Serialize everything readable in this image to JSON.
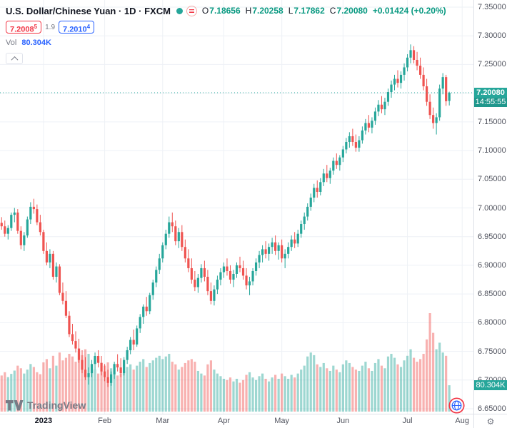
{
  "header": {
    "title_full": "U.S. Dollar/Chinese Yuan · 1D · FXCM",
    "ohlc": {
      "o_label": "O",
      "o": "7.18656",
      "h_label": "H",
      "h": "7.20258",
      "l_label": "L",
      "l": "7.17862",
      "c_label": "C",
      "c": "7.20080",
      "change": "+0.01424 (+0.20%)"
    },
    "bid": "7.2008",
    "bid_sup": "5",
    "spread": "1.9",
    "ask": "7.2010",
    "ask_sup": "4",
    "vol_label": "Vol",
    "vol_value": "80.304K"
  },
  "badges": {
    "price": "7.20080",
    "countdown": "14:55:55",
    "volume": "80.304K"
  },
  "logo": {
    "text": "TradingView"
  },
  "icons": {
    "gear": "⚙"
  },
  "colors": {
    "up": "#26a69a",
    "down": "#ef5350",
    "vol_up": "rgba(38,166,154,0.45)",
    "vol_down": "rgba(239,83,80,0.45)",
    "grid": "#eef1f6",
    "text_up": "#089981",
    "bid": "#f23645",
    "ask": "#2962ff",
    "badge": "#26a69a"
  },
  "chart_data": {
    "type": "candlestick",
    "title": "U.S. Dollar/Chinese Yuan",
    "interval": "1D",
    "exchange": "FXCM",
    "last_price": 7.2008,
    "last_volume_k": 80.304,
    "volume_unit": "K",
    "price_axis": {
      "min": 6.65,
      "max": 7.35,
      "labels": [
        "7.35000",
        "7.30000",
        "7.25000",
        "7.20000",
        "7.15000",
        "7.10000",
        "7.05000",
        "7.00000",
        "6.95000",
        "6.90000",
        "6.85000",
        "6.80000",
        "6.75000",
        "6.70000",
        "6.65000"
      ]
    },
    "time_axis": [
      {
        "label": "2023",
        "index": 13
      },
      {
        "label": "Feb",
        "index": 32
      },
      {
        "label": "Mar",
        "index": 50
      },
      {
        "label": "Apr",
        "index": 69
      },
      {
        "label": "May",
        "index": 87
      },
      {
        "label": "Jun",
        "index": 106
      },
      {
        "label": "Jul",
        "index": 126
      },
      {
        "label": "Aug",
        "index": 143
      }
    ],
    "total_slots": 147,
    "candles_format": [
      "open",
      "high",
      "low",
      "close",
      "volume_k"
    ],
    "candles": [
      [
        6.974,
        6.984,
        6.962,
        6.968,
        110
      ],
      [
        6.968,
        6.978,
        6.95,
        6.955,
        120
      ],
      [
        6.955,
        6.97,
        6.945,
        6.965,
        105
      ],
      [
        6.965,
        6.992,
        6.96,
        6.988,
        115
      ],
      [
        6.988,
        7.0,
        6.975,
        6.992,
        125
      ],
      [
        6.992,
        6.998,
        6.955,
        6.96,
        140
      ],
      [
        6.96,
        6.968,
        6.928,
        6.935,
        132
      ],
      [
        6.935,
        6.958,
        6.925,
        6.952,
        116
      ],
      [
        6.952,
        6.985,
        6.948,
        6.98,
        128
      ],
      [
        6.98,
        7.01,
        6.972,
        7.002,
        145
      ],
      [
        7.002,
        7.016,
        6.99,
        6.998,
        136
      ],
      [
        6.998,
        7.006,
        6.97,
        6.975,
        120
      ],
      [
        6.975,
        6.988,
        6.952,
        6.958,
        114
      ],
      [
        6.958,
        6.962,
        6.92,
        6.925,
        150
      ],
      [
        6.925,
        6.94,
        6.9,
        6.905,
        160
      ],
      [
        6.905,
        6.928,
        6.895,
        6.92,
        132
      ],
      [
        6.92,
        6.925,
        6.875,
        6.88,
        170
      ],
      [
        6.88,
        6.905,
        6.87,
        6.898,
        140
      ],
      [
        6.898,
        6.902,
        6.848,
        6.852,
        180
      ],
      [
        6.852,
        6.87,
        6.832,
        6.838,
        156
      ],
      [
        6.838,
        6.855,
        6.808,
        6.812,
        164
      ],
      [
        6.812,
        6.82,
        6.775,
        6.78,
        176
      ],
      [
        6.78,
        6.798,
        6.762,
        6.768,
        168
      ],
      [
        6.768,
        6.785,
        6.748,
        6.755,
        152
      ],
      [
        6.755,
        6.772,
        6.73,
        6.735,
        184
      ],
      [
        6.735,
        6.752,
        6.712,
        6.718,
        172
      ],
      [
        6.718,
        6.74,
        6.7,
        6.705,
        190
      ],
      [
        6.705,
        6.722,
        6.692,
        6.712,
        176
      ],
      [
        6.712,
        6.735,
        6.705,
        6.728,
        144
      ],
      [
        6.728,
        6.748,
        6.718,
        6.742,
        128
      ],
      [
        6.742,
        6.752,
        6.722,
        6.73,
        116
      ],
      [
        6.73,
        6.742,
        6.708,
        6.715,
        124
      ],
      [
        6.715,
        6.728,
        6.698,
        6.705,
        140
      ],
      [
        6.705,
        6.718,
        6.688,
        6.695,
        150
      ],
      [
        6.695,
        6.715,
        6.69,
        6.71,
        132
      ],
      [
        6.71,
        6.732,
        6.702,
        6.728,
        120
      ],
      [
        6.728,
        6.745,
        6.715,
        6.722,
        110
      ],
      [
        6.722,
        6.738,
        6.705,
        6.712,
        116
      ],
      [
        6.712,
        6.74,
        6.708,
        6.735,
        124
      ],
      [
        6.735,
        6.758,
        6.728,
        6.752,
        136
      ],
      [
        6.752,
        6.775,
        6.745,
        6.77,
        144
      ],
      [
        6.77,
        6.788,
        6.752,
        6.762,
        128
      ],
      [
        6.762,
        6.795,
        6.758,
        6.79,
        140
      ],
      [
        6.79,
        6.815,
        6.782,
        6.81,
        152
      ],
      [
        6.81,
        6.832,
        6.798,
        6.828,
        160
      ],
      [
        6.828,
        6.845,
        6.812,
        6.82,
        136
      ],
      [
        6.82,
        6.852,
        6.815,
        6.848,
        148
      ],
      [
        6.848,
        6.875,
        6.84,
        6.87,
        156
      ],
      [
        6.87,
        6.898,
        6.862,
        6.892,
        164
      ],
      [
        6.892,
        6.92,
        6.885,
        6.912,
        170
      ],
      [
        6.912,
        6.94,
        6.905,
        6.935,
        160
      ],
      [
        6.935,
        6.962,
        6.928,
        6.955,
        168
      ],
      [
        6.955,
        6.985,
        6.948,
        6.975,
        176
      ],
      [
        6.975,
        6.992,
        6.958,
        6.968,
        152
      ],
      [
        6.968,
        6.978,
        6.935,
        6.942,
        144
      ],
      [
        6.942,
        6.965,
        6.93,
        6.958,
        128
      ],
      [
        6.958,
        6.97,
        6.925,
        6.932,
        136
      ],
      [
        6.932,
        6.945,
        6.905,
        6.912,
        148
      ],
      [
        6.912,
        6.928,
        6.888,
        6.895,
        156
      ],
      [
        6.895,
        6.912,
        6.868,
        6.875,
        160
      ],
      [
        6.875,
        6.89,
        6.855,
        6.862,
        152
      ],
      [
        6.862,
        6.885,
        6.852,
        6.878,
        124
      ],
      [
        6.878,
        6.902,
        6.87,
        6.895,
        116
      ],
      [
        6.895,
        6.908,
        6.872,
        6.88,
        110
      ],
      [
        6.88,
        6.892,
        6.848,
        6.855,
        144
      ],
      [
        6.855,
        6.87,
        6.832,
        6.838,
        156
      ],
      [
        6.838,
        6.865,
        6.83,
        6.858,
        128
      ],
      [
        6.858,
        6.882,
        6.85,
        6.875,
        116
      ],
      [
        6.875,
        6.895,
        6.865,
        6.888,
        108
      ],
      [
        6.888,
        6.905,
        6.878,
        6.898,
        100
      ],
      [
        6.898,
        6.912,
        6.882,
        6.89,
        96
      ],
      [
        6.89,
        6.9,
        6.868,
        6.875,
        104
      ],
      [
        6.875,
        6.892,
        6.862,
        6.885,
        92
      ],
      [
        6.885,
        6.905,
        6.878,
        6.9,
        100
      ],
      [
        6.9,
        6.915,
        6.888,
        6.895,
        88
      ],
      [
        6.895,
        6.908,
        6.875,
        6.882,
        96
      ],
      [
        6.882,
        6.895,
        6.858,
        6.865,
        112
      ],
      [
        6.865,
        6.88,
        6.848,
        6.872,
        120
      ],
      [
        6.872,
        6.895,
        6.865,
        6.89,
        104
      ],
      [
        6.89,
        6.912,
        6.882,
        6.905,
        96
      ],
      [
        6.905,
        6.925,
        6.895,
        6.918,
        108
      ],
      [
        6.918,
        6.935,
        6.905,
        6.928,
        116
      ],
      [
        6.928,
        6.942,
        6.912,
        6.92,
        100
      ],
      [
        6.92,
        6.938,
        6.908,
        6.932,
        92
      ],
      [
        6.932,
        6.948,
        6.92,
        6.94,
        104
      ],
      [
        6.94,
        6.952,
        6.918,
        6.925,
        112
      ],
      [
        6.925,
        6.94,
        6.91,
        6.935,
        100
      ],
      [
        6.935,
        6.945,
        6.905,
        6.912,
        116
      ],
      [
        6.912,
        6.928,
        6.895,
        6.92,
        108
      ],
      [
        6.92,
        6.94,
        6.912,
        6.932,
        100
      ],
      [
        6.932,
        6.952,
        6.925,
        6.945,
        112
      ],
      [
        6.945,
        6.958,
        6.93,
        6.938,
        104
      ],
      [
        6.938,
        6.962,
        6.932,
        6.955,
        116
      ],
      [
        6.955,
        6.978,
        6.948,
        6.972,
        128
      ],
      [
        6.972,
        6.992,
        6.962,
        6.985,
        140
      ],
      [
        6.985,
        7.008,
        6.978,
        7.002,
        168
      ],
      [
        7.002,
        7.025,
        6.995,
        7.018,
        180
      ],
      [
        7.018,
        7.042,
        7.01,
        7.035,
        172
      ],
      [
        7.035,
        7.048,
        7.018,
        7.028,
        144
      ],
      [
        7.028,
        7.052,
        7.022,
        7.045,
        136
      ],
      [
        7.045,
        7.068,
        7.038,
        7.06,
        148
      ],
      [
        7.06,
        7.075,
        7.045,
        7.052,
        132
      ],
      [
        7.052,
        7.07,
        7.042,
        7.065,
        124
      ],
      [
        7.065,
        7.088,
        7.058,
        7.082,
        140
      ],
      [
        7.082,
        7.095,
        7.068,
        7.075,
        128
      ],
      [
        7.075,
        7.092,
        7.065,
        7.088,
        120
      ],
      [
        7.088,
        7.108,
        7.08,
        7.102,
        144
      ],
      [
        7.102,
        7.122,
        7.095,
        7.115,
        156
      ],
      [
        7.115,
        7.132,
        7.105,
        7.125,
        148
      ],
      [
        7.125,
        7.138,
        7.108,
        7.115,
        136
      ],
      [
        7.115,
        7.128,
        7.098,
        7.105,
        128
      ],
      [
        7.105,
        7.125,
        7.098,
        7.118,
        124
      ],
      [
        7.118,
        7.142,
        7.112,
        7.135,
        140
      ],
      [
        7.135,
        7.155,
        7.128,
        7.148,
        152
      ],
      [
        7.148,
        7.162,
        7.132,
        7.14,
        132
      ],
      [
        7.14,
        7.158,
        7.13,
        7.152,
        124
      ],
      [
        7.152,
        7.175,
        7.145,
        7.168,
        148
      ],
      [
        7.168,
        7.188,
        7.16,
        7.18,
        160
      ],
      [
        7.18,
        7.195,
        7.165,
        7.172,
        140
      ],
      [
        7.172,
        7.192,
        7.162,
        7.185,
        132
      ],
      [
        7.185,
        7.208,
        7.178,
        7.202,
        168
      ],
      [
        7.202,
        7.222,
        7.192,
        7.215,
        176
      ],
      [
        7.215,
        7.232,
        7.205,
        7.225,
        164
      ],
      [
        7.225,
        7.24,
        7.21,
        7.218,
        144
      ],
      [
        7.218,
        7.238,
        7.208,
        7.232,
        136
      ],
      [
        7.232,
        7.252,
        7.222,
        7.245,
        156
      ],
      [
        7.245,
        7.268,
        7.238,
        7.262,
        170
      ],
      [
        7.262,
        7.285,
        7.252,
        7.275,
        190
      ],
      [
        7.275,
        7.282,
        7.252,
        7.258,
        164
      ],
      [
        7.258,
        7.272,
        7.24,
        7.248,
        152
      ],
      [
        7.248,
        7.262,
        7.225,
        7.232,
        160
      ],
      [
        7.232,
        7.245,
        7.205,
        7.212,
        176
      ],
      [
        7.212,
        7.225,
        7.178,
        7.185,
        220
      ],
      [
        7.185,
        7.198,
        7.155,
        7.162,
        300
      ],
      [
        7.162,
        7.175,
        7.138,
        7.148,
        240
      ],
      [
        7.148,
        7.165,
        7.128,
        7.158,
        190
      ],
      [
        7.158,
        7.215,
        7.152,
        7.208,
        210
      ],
      [
        7.208,
        7.235,
        7.198,
        7.228,
        180
      ],
      [
        7.228,
        7.232,
        7.178,
        7.186,
        170
      ],
      [
        7.18656,
        7.20258,
        7.17862,
        7.2008,
        80.304
      ]
    ]
  }
}
